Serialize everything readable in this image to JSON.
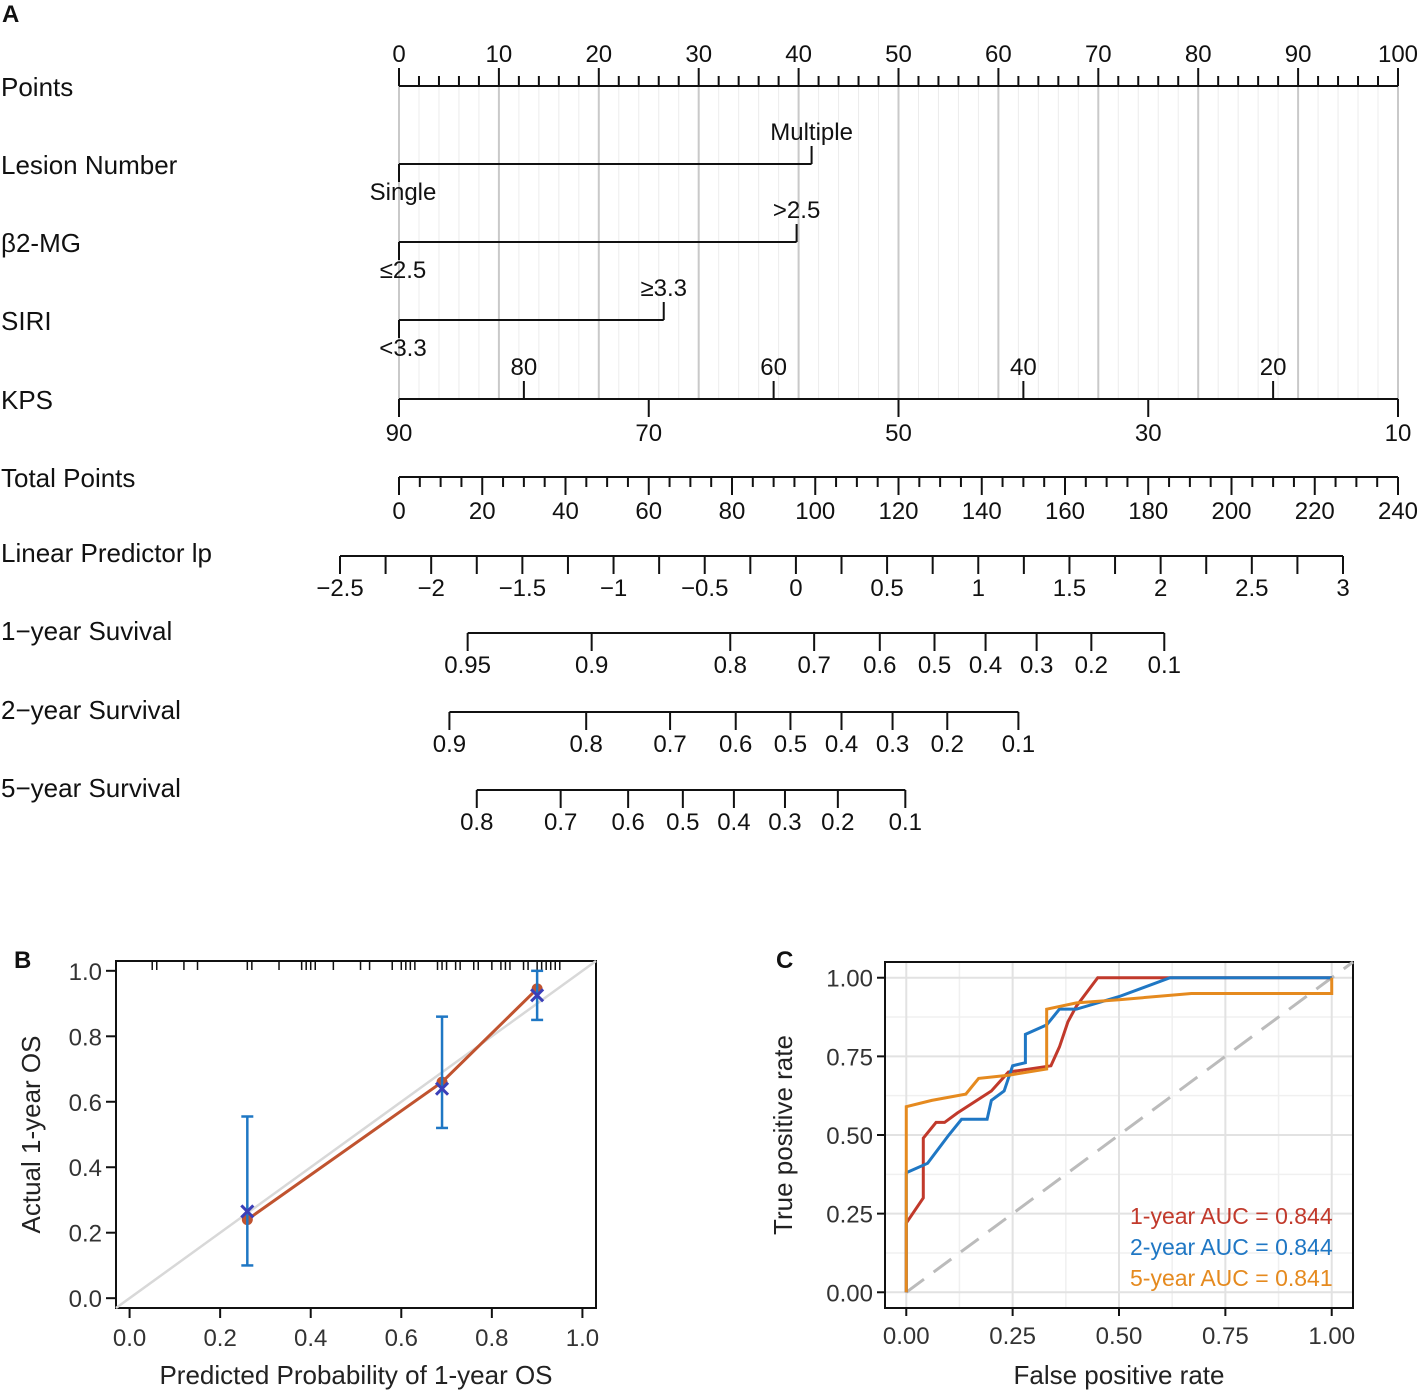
{
  "panels": {
    "a": "A",
    "b": "B",
    "c": "C"
  },
  "chart_data": [
    {
      "type": "nomogram",
      "panel": "A",
      "rows": [
        {
          "label": "Points",
          "kind": "points",
          "range": [
            0,
            100
          ],
          "major_ticks": [
            0,
            10,
            20,
            30,
            40,
            50,
            60,
            70,
            80,
            90,
            100
          ]
        },
        {
          "label": "Lesion Number",
          "kind": "factor",
          "levels": [
            {
              "label": "Single",
              "points": 0
            },
            {
              "label": "Multiple",
              "points": 41.3
            }
          ]
        },
        {
          "label": "β2-MG",
          "kind": "factor",
          "levels": [
            {
              "label": "≤2.5",
              "points": 0
            },
            {
              "label": ">2.5",
              "points": 39.8
            }
          ]
        },
        {
          "label": "SIRI",
          "kind": "factor",
          "levels": [
            {
              "label": "<3.3",
              "points": 0
            },
            {
              "label": "≥3.3",
              "points": 26.5
            }
          ]
        },
        {
          "label": "KPS",
          "kind": "continuous",
          "ticks_below": [
            {
              "label": "90",
              "points": 0
            },
            {
              "label": "70",
              "points": 25
            },
            {
              "label": "50",
              "points": 50
            },
            {
              "label": "30",
              "points": 75
            },
            {
              "label": "10",
              "points": 100
            }
          ],
          "ticks_above": [
            {
              "label": "80",
              "points": 12.5
            },
            {
              "label": "60",
              "points": 37.5
            },
            {
              "label": "40",
              "points": 62.5
            },
            {
              "label": "20",
              "points": 87.5
            }
          ]
        },
        {
          "label": "Total Points",
          "kind": "total",
          "range": [
            0,
            240
          ],
          "major_ticks": [
            0,
            20,
            40,
            60,
            80,
            100,
            120,
            140,
            160,
            180,
            200,
            220,
            240
          ]
        },
        {
          "label": "Linear Predictor lp",
          "kind": "scale",
          "range": [
            -2.5,
            3
          ],
          "ticks": [
            {
              "v": -2.5,
              "label": "−2.5"
            },
            {
              "v": -2,
              "label": "−2"
            },
            {
              "v": -1.5,
              "label": "−1.5"
            },
            {
              "v": -1,
              "label": "−1"
            },
            {
              "v": -0.5,
              "label": "−0.5"
            },
            {
              "v": 0,
              "label": "0"
            },
            {
              "v": 0.5,
              "label": "0.5"
            },
            {
              "v": 1,
              "label": "1"
            },
            {
              "v": 1.5,
              "label": "1.5"
            },
            {
              "v": 2,
              "label": "2"
            },
            {
              "v": 2.5,
              "label": "2.5"
            },
            {
              "v": 3,
              "label": "3"
            }
          ]
        },
        {
          "label": "1−year Suvival",
          "kind": "prob",
          "ticks": [
            {
              "lp": -1.8,
              "label": "0.95"
            },
            {
              "lp": -1.12,
              "label": "0.9"
            },
            {
              "lp": -0.36,
              "label": "0.8"
            },
            {
              "lp": 0.1,
              "label": "0.7"
            },
            {
              "lp": 0.46,
              "label": "0.6"
            },
            {
              "lp": 0.76,
              "label": "0.5"
            },
            {
              "lp": 1.04,
              "label": "0.4"
            },
            {
              "lp": 1.32,
              "label": "0.3"
            },
            {
              "lp": 1.62,
              "label": "0.2"
            },
            {
              "lp": 2.02,
              "label": "0.1"
            }
          ]
        },
        {
          "label": "2−year Survival",
          "kind": "prob",
          "ticks": [
            {
              "lp": -1.9,
              "label": "0.9"
            },
            {
              "lp": -1.15,
              "label": "0.8"
            },
            {
              "lp": -0.69,
              "label": "0.7"
            },
            {
              "lp": -0.33,
              "label": "0.6"
            },
            {
              "lp": -0.03,
              "label": "0.5"
            },
            {
              "lp": 0.25,
              "label": "0.4"
            },
            {
              "lp": 0.53,
              "label": "0.3"
            },
            {
              "lp": 0.83,
              "label": "0.2"
            },
            {
              "lp": 1.22,
              "label": "0.1"
            }
          ]
        },
        {
          "label": "5−year Survival",
          "kind": "prob",
          "ticks": [
            {
              "lp": -1.75,
              "label": "0.8"
            },
            {
              "lp": -1.29,
              "label": "0.7"
            },
            {
              "lp": -0.92,
              "label": "0.6"
            },
            {
              "lp": -0.62,
              "label": "0.5"
            },
            {
              "lp": -0.34,
              "label": "0.4"
            },
            {
              "lp": -0.06,
              "label": "0.3"
            },
            {
              "lp": 0.23,
              "label": "0.2"
            },
            {
              "lp": 0.6,
              "label": "0.1"
            }
          ]
        }
      ]
    },
    {
      "type": "scatter",
      "panel": "B",
      "title": "",
      "xlabel": "Predicted Probability of 1-year OS",
      "ylabel": "Actual 1-year OS",
      "xlim": [
        -0.03,
        1.03
      ],
      "ylim": [
        -0.03,
        1.03
      ],
      "xticks": [
        "0.0",
        "0.2",
        "0.4",
        "0.6",
        "0.8",
        "1.0"
      ],
      "yticks": [
        "0.0",
        "0.2",
        "0.4",
        "0.6",
        "0.8",
        "1.0"
      ],
      "ideal_line": [
        [
          -0.03,
          -0.03
        ],
        [
          1.03,
          1.03
        ]
      ],
      "calibrated": [
        {
          "x": 0.26,
          "y": 0.24
        },
        {
          "x": 0.69,
          "y": 0.66
        },
        {
          "x": 0.9,
          "y": 0.945
        }
      ],
      "observed": [
        {
          "x": 0.26,
          "y": 0.265,
          "lo": 0.1,
          "hi": 0.555
        },
        {
          "x": 0.69,
          "y": 0.64,
          "lo": 0.52,
          "hi": 0.86
        },
        {
          "x": 0.9,
          "y": 0.925,
          "lo": 0.85,
          "hi": 1.0
        }
      ],
      "rug": [
        0.05,
        0.06,
        0.12,
        0.15,
        0.26,
        0.27,
        0.33,
        0.38,
        0.39,
        0.4,
        0.41,
        0.45,
        0.51,
        0.53,
        0.58,
        0.6,
        0.61,
        0.62,
        0.63,
        0.68,
        0.69,
        0.7,
        0.72,
        0.73,
        0.76,
        0.77,
        0.8,
        0.82,
        0.83,
        0.84,
        0.87,
        0.88,
        0.9,
        0.91,
        0.92,
        0.93,
        0.94,
        0.95
      ]
    },
    {
      "type": "line",
      "panel": "C",
      "xlabel": "False positive rate",
      "ylabel": "True positive rate",
      "xlim": [
        -0.05,
        1.05
      ],
      "ylim": [
        -0.05,
        1.05
      ],
      "xticks": [
        "0.00",
        "0.25",
        "0.50",
        "0.75",
        "1.00"
      ],
      "yticks": [
        "0.00",
        "0.25",
        "0.50",
        "0.75",
        "1.00"
      ],
      "diagonal": [
        [
          0,
          0
        ],
        [
          1.05,
          1.05
        ]
      ],
      "series": [
        {
          "name": "1-year AUC = 0.844",
          "color": "#c1392b",
          "points": [
            [
              0,
              0
            ],
            [
              0,
              0.22
            ],
            [
              0.04,
              0.3
            ],
            [
              0.04,
              0.49
            ],
            [
              0.07,
              0.54
            ],
            [
              0.09,
              0.54
            ],
            [
              0.12,
              0.57
            ],
            [
              0.2,
              0.64
            ],
            [
              0.24,
              0.7
            ],
            [
              0.34,
              0.72
            ],
            [
              0.36,
              0.78
            ],
            [
              0.38,
              0.86
            ],
            [
              0.4,
              0.91
            ],
            [
              0.45,
              1
            ],
            [
              1,
              1
            ]
          ]
        },
        {
          "name": "2-year AUC = 0.844",
          "color": "#1f77c4",
          "points": [
            [
              0,
              0
            ],
            [
              0,
              0.38
            ],
            [
              0.05,
              0.41
            ],
            [
              0.1,
              0.5
            ],
            [
              0.13,
              0.55
            ],
            [
              0.19,
              0.55
            ],
            [
              0.2,
              0.61
            ],
            [
              0.23,
              0.64
            ],
            [
              0.25,
              0.72
            ],
            [
              0.28,
              0.73
            ],
            [
              0.28,
              0.82
            ],
            [
              0.33,
              0.85
            ],
            [
              0.36,
              0.9
            ],
            [
              0.4,
              0.9
            ],
            [
              0.5,
              0.94
            ],
            [
              0.62,
              1
            ],
            [
              1,
              1
            ]
          ]
        },
        {
          "name": "5-year AUC = 0.841",
          "color": "#e58a1f",
          "points": [
            [
              0,
              0
            ],
            [
              0,
              0.59
            ],
            [
              0.06,
              0.61
            ],
            [
              0.14,
              0.63
            ],
            [
              0.17,
              0.68
            ],
            [
              0.24,
              0.69
            ],
            [
              0.33,
              0.71
            ],
            [
              0.33,
              0.9
            ],
            [
              0.4,
              0.92
            ],
            [
              0.5,
              0.93
            ],
            [
              0.67,
              0.95
            ],
            [
              1,
              0.95
            ],
            [
              1,
              1
            ]
          ]
        }
      ]
    }
  ]
}
